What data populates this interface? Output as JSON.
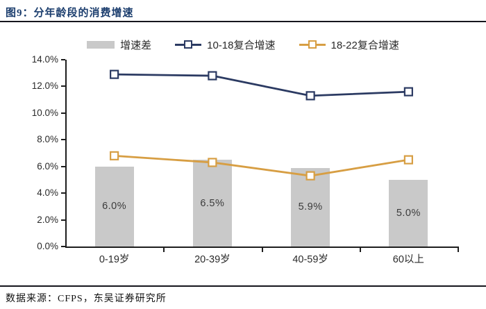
{
  "header": {
    "title": "图9：分年龄段的消费增速"
  },
  "legend": {
    "items": [
      {
        "label": "增速差",
        "kind": "bar",
        "color_key": "bar_gray"
      },
      {
        "label": "10-18复合增速",
        "kind": "line",
        "color_key": "navy"
      },
      {
        "label": "18-22复合增速",
        "kind": "line",
        "color_key": "gold"
      }
    ]
  },
  "chart_data": {
    "type": "combo",
    "categories": [
      "0-19岁",
      "20-39岁",
      "40-59岁",
      "60以上"
    ],
    "series": [
      {
        "name": "增速差",
        "kind": "bar",
        "color_key": "bar_gray",
        "values": [
          6.0,
          6.5,
          5.9,
          5.0
        ],
        "labels": [
          "6.0%",
          "6.5%",
          "5.9%",
          "5.0%"
        ]
      },
      {
        "name": "10-18复合增速",
        "kind": "line",
        "color_key": "navy",
        "values": [
          12.9,
          12.8,
          11.3,
          11.6
        ]
      },
      {
        "name": "18-22复合增速",
        "kind": "line",
        "color_key": "gold",
        "values": [
          6.8,
          6.3,
          5.3,
          6.5
        ]
      }
    ],
    "ylim": [
      0,
      14
    ],
    "y_ticks": [
      {
        "v": 0,
        "label": "0.0%"
      },
      {
        "v": 2,
        "label": "2.0%"
      },
      {
        "v": 4,
        "label": "4.0%"
      },
      {
        "v": 6,
        "label": "6.0%"
      },
      {
        "v": 8,
        "label": "8.0%"
      },
      {
        "v": 10,
        "label": "10.0%"
      },
      {
        "v": 12,
        "label": "12.0%"
      },
      {
        "v": 14,
        "label": "14.0%"
      }
    ],
    "grid": false,
    "legend_position": "top"
  },
  "footer": {
    "source": "数据来源：CFPS，东吴证券研究所"
  },
  "colors": {
    "title_navy": "#1c3e6e",
    "navy": "#2b3a62",
    "gold": "#d79e43",
    "bar_gray": "#c9c9c9",
    "axis": "#1d1d1d",
    "text": "#2a2a2a",
    "bar_label": "#3b3b3b",
    "rule": "#15151d"
  }
}
